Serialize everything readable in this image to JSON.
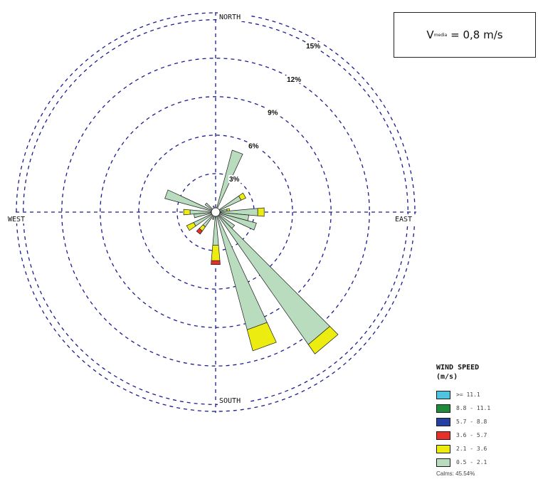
{
  "chart_data": {
    "type": "windrose",
    "title": "",
    "directions": {
      "north": "NORTH",
      "south": "SOUTH",
      "east": "EAST",
      "west": "WEST"
    },
    "ring_values": [
      3,
      6,
      9,
      12,
      15
    ],
    "ring_labels": [
      "3%",
      "6%",
      "9%",
      "12%",
      "15%"
    ],
    "rmax": 15.54,
    "sector_degrees": 10,
    "mean_speed": {
      "symbol": "V",
      "subscript": "media",
      "value": "= 0,8 m/s"
    },
    "legend": {
      "title_line1": "WIND SPEED",
      "title_line2": "(m/s)",
      "position": "bottom-right",
      "classes": [
        {
          "label": ">= 11.1",
          "color": "#4fc3e0"
        },
        {
          "label": "8.8 - 11.1",
          "color": "#1f8a3a"
        },
        {
          "label": "5.7 - 8.8",
          "color": "#2440a0"
        },
        {
          "label": "3.6 - 5.7",
          "color": "#e8302a"
        },
        {
          "label": "2.1 - 3.6",
          "color": "#ecec10"
        },
        {
          "label": "0.5 - 2.1",
          "color": "#b9dcbf"
        }
      ],
      "calms": "Calms: 45.54%"
    },
    "sectors": [
      {
        "direction": 20,
        "percent": [
          5.0,
          0,
          0,
          0,
          0,
          0
        ]
      },
      {
        "direction": 60,
        "percent": [
          2.2,
          0.4,
          0,
          0,
          0,
          0
        ]
      },
      {
        "direction": 80,
        "percent": [
          0.9,
          0.2,
          0,
          0,
          0,
          0
        ]
      },
      {
        "direction": 90,
        "percent": [
          3.3,
          0.5,
          0,
          0,
          0,
          0
        ]
      },
      {
        "direction": 100,
        "percent": [
          2.6,
          0,
          0,
          0,
          0,
          0
        ]
      },
      {
        "direction": 110,
        "percent": [
          3.3,
          0,
          0,
          0,
          0,
          0
        ]
      },
      {
        "direction": 130,
        "percent": [
          1.8,
          0,
          0,
          0,
          0,
          0
        ]
      },
      {
        "direction": 140,
        "percent": [
          12.6,
          0.9,
          0,
          0,
          0,
          0
        ]
      },
      {
        "direction": 160,
        "percent": [
          9.5,
          1.7,
          0,
          0,
          0,
          0
        ]
      },
      {
        "direction": 180,
        "percent": [
          2.6,
          1.2,
          0.3,
          0,
          0,
          0
        ]
      },
      {
        "direction": 200,
        "percent": [
          0.6,
          0,
          0,
          0,
          0,
          0
        ]
      },
      {
        "direction": 220,
        "percent": [
          1.4,
          0.4,
          0.3,
          0,
          0,
          0
        ]
      },
      {
        "direction": 240,
        "percent": [
          1.9,
          0.6,
          0,
          0,
          0,
          0
        ]
      },
      {
        "direction": 260,
        "percent": [
          1.7,
          0,
          0,
          0,
          0,
          0
        ]
      },
      {
        "direction": 270,
        "percent": [
          2.0,
          0.5,
          0,
          0,
          0,
          0
        ]
      },
      {
        "direction": 290,
        "percent": [
          4.1,
          0,
          0,
          0,
          0,
          0
        ]
      },
      {
        "direction": 310,
        "percent": [
          1.0,
          0,
          0,
          0,
          0,
          0
        ]
      },
      {
        "direction": 340,
        "percent": [
          0.5,
          0,
          0,
          0,
          0,
          0
        ]
      }
    ]
  }
}
